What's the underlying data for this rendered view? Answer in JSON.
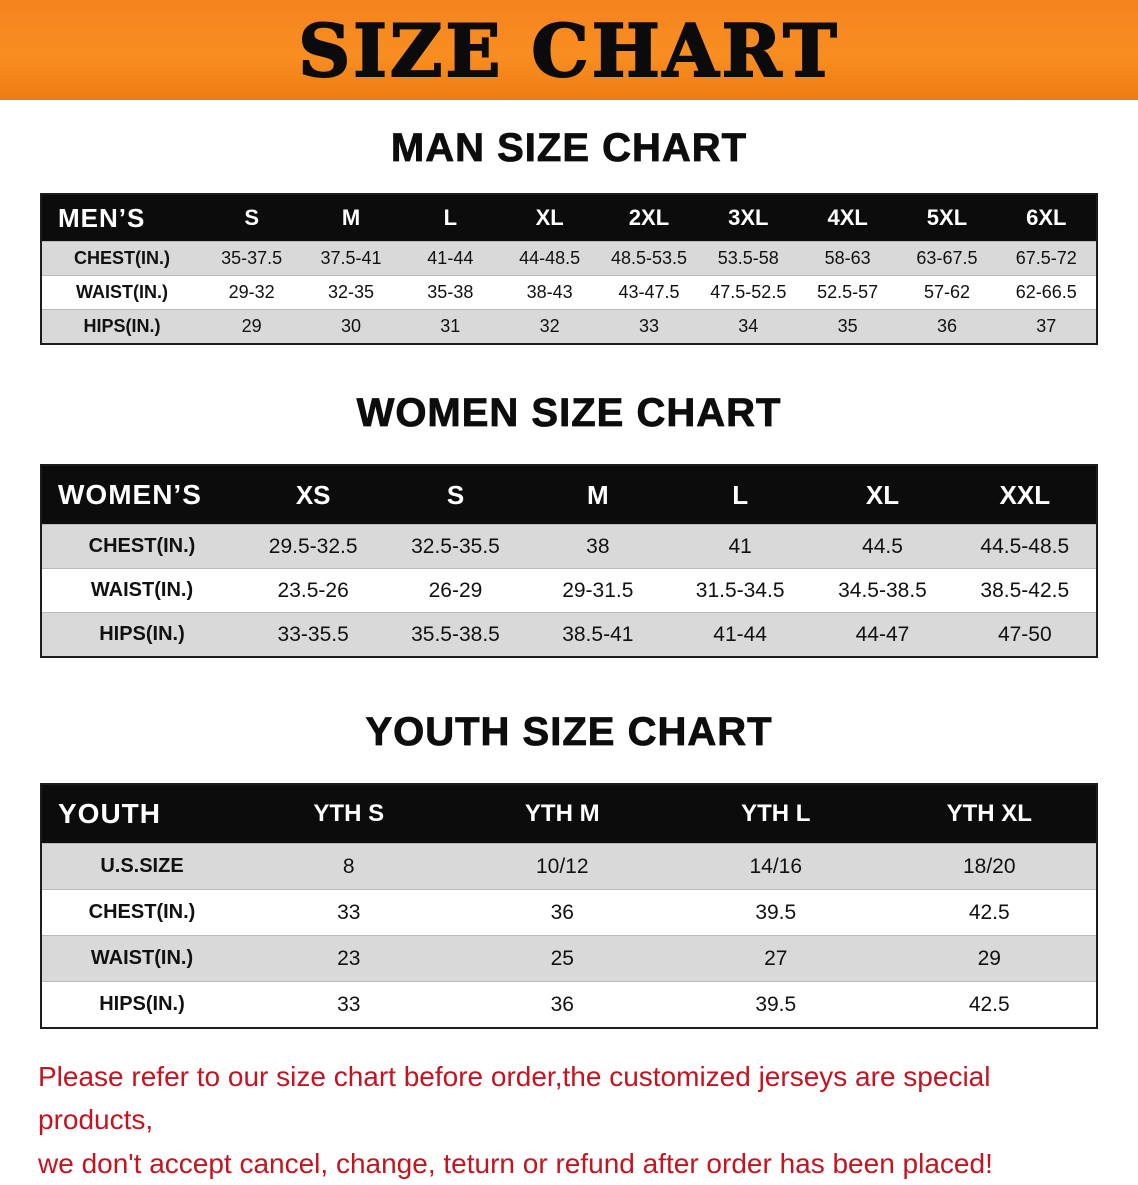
{
  "banner": {
    "title": "SIZE CHART"
  },
  "colors": {
    "banner_bg": "#f5831f",
    "table_header_bg": "#0c0c0c",
    "alt_row_bg": "#d9d9d9",
    "note_color": "#c41420"
  },
  "men": {
    "heading": "MAN SIZE CHART",
    "label": "MEN’S",
    "columns": [
      "S",
      "M",
      "L",
      "XL",
      "2XL",
      "3XL",
      "4XL",
      "5XL",
      "6XL"
    ],
    "rows": [
      {
        "label": "CHEST(IN.)",
        "values": [
          "35-37.5",
          "37.5-41",
          "41-44",
          "44-48.5",
          "48.5-53.5",
          "53.5-58",
          "58-63",
          "63-67.5",
          "67.5-72"
        ]
      },
      {
        "label": "WAIST(IN.)",
        "values": [
          "29-32",
          "32-35",
          "35-38",
          "38-43",
          "43-47.5",
          "47.5-52.5",
          "52.5-57",
          "57-62",
          "62-66.5"
        ]
      },
      {
        "label": "HIPS(IN.)",
        "values": [
          "29",
          "30",
          "31",
          "32",
          "33",
          "34",
          "35",
          "36",
          "37"
        ]
      }
    ]
  },
  "women": {
    "heading": "WOMEN SIZE CHART",
    "label": "WOMEN’S",
    "columns": [
      "XS",
      "S",
      "M",
      "L",
      "XL",
      "XXL"
    ],
    "rows": [
      {
        "label": "CHEST(IN.)",
        "values": [
          "29.5-32.5",
          "32.5-35.5",
          "38",
          "41",
          "44.5",
          "44.5-48.5"
        ]
      },
      {
        "label": "WAIST(IN.)",
        "values": [
          "23.5-26",
          "26-29",
          "29-31.5",
          "31.5-34.5",
          "34.5-38.5",
          "38.5-42.5"
        ]
      },
      {
        "label": "HIPS(IN.)",
        "values": [
          "33-35.5",
          "35.5-38.5",
          "38.5-41",
          "41-44",
          "44-47",
          "47-50"
        ]
      }
    ]
  },
  "youth": {
    "heading": "YOUTH SIZE CHART",
    "label": "YOUTH",
    "columns": [
      "YTH S",
      "YTH M",
      "YTH L",
      "YTH XL"
    ],
    "rows": [
      {
        "label": "U.S.SIZE",
        "values": [
          "8",
          "10/12",
          "14/16",
          "18/20"
        ]
      },
      {
        "label": "CHEST(IN.)",
        "values": [
          "33",
          "36",
          "39.5",
          "42.5"
        ]
      },
      {
        "label": "WAIST(IN.)",
        "values": [
          "23",
          "25",
          "27",
          "29"
        ]
      },
      {
        "label": "HIPS(IN.)",
        "values": [
          "33",
          "36",
          "39.5",
          "42.5"
        ]
      }
    ]
  },
  "note": {
    "line1": "Please refer to our size chart before order,the customized jerseys are special products,",
    "line2": "we don't accept cancel, change, teturn or refund after order has been placed!"
  }
}
